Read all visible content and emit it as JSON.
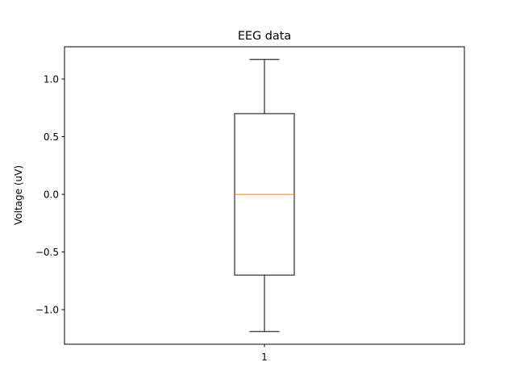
{
  "chart_data": {
    "type": "box",
    "title": "EEG data",
    "xlabel": "",
    "ylabel": "Voltage (uV)",
    "ylim": [
      -1.3,
      1.28
    ],
    "y_ticks": [
      -1.0,
      -0.5,
      0.0,
      0.5,
      1.0
    ],
    "y_tick_labels": [
      "−1.0",
      "−0.5",
      "0.0",
      "0.5",
      "1.0"
    ],
    "categories": [
      "1"
    ],
    "boxes": [
      {
        "label": "1",
        "whisker_low": -1.19,
        "q1": -0.7,
        "median": 0.0,
        "q3": 0.7,
        "whisker_high": 1.17
      }
    ],
    "grid": false,
    "colors": {
      "box": "#000000",
      "median": "#ff7f0e",
      "axes": "#000000"
    }
  }
}
